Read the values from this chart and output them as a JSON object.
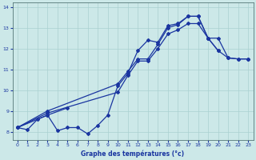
{
  "xlabel": "Graphe des températures (°c)",
  "bg_color": "#cce8e8",
  "grid_color": "#aad0d0",
  "line_color": "#1a35a0",
  "xlim": [
    -0.5,
    23.5
  ],
  "ylim": [
    7.6,
    14.2
  ],
  "xticks": [
    0,
    1,
    2,
    3,
    4,
    5,
    6,
    7,
    8,
    9,
    10,
    11,
    12,
    13,
    14,
    15,
    16,
    17,
    18,
    19,
    20,
    21,
    22,
    23
  ],
  "yticks": [
    8,
    9,
    10,
    11,
    12,
    13,
    14
  ],
  "line1_x": [
    0,
    1,
    2,
    3,
    4,
    5,
    6,
    7,
    8,
    9,
    10,
    11,
    12,
    13,
    14,
    15,
    16,
    17,
    18,
    19,
    20
  ],
  "line1_y": [
    8.2,
    8.1,
    8.6,
    8.8,
    8.05,
    8.2,
    8.2,
    7.9,
    8.3,
    8.8,
    10.2,
    10.8,
    11.9,
    12.4,
    12.3,
    13.1,
    13.2,
    13.55,
    13.55,
    12.5,
    11.9
  ],
  "line2_x": [
    0,
    3,
    10,
    11,
    12,
    13,
    14,
    15,
    16,
    17,
    18,
    19,
    20,
    21,
    22,
    23
  ],
  "line2_y": [
    8.2,
    9.0,
    10.3,
    10.9,
    11.5,
    11.5,
    12.2,
    13.0,
    13.15,
    13.55,
    13.55,
    12.5,
    11.9,
    11.55,
    11.5,
    11.5
  ],
  "line3_x": [
    0,
    3,
    10,
    11,
    12,
    13,
    14,
    15,
    16,
    17,
    18,
    19,
    20,
    21,
    22,
    23
  ],
  "line3_y": [
    8.2,
    8.9,
    9.9,
    10.7,
    11.4,
    11.4,
    12.0,
    12.7,
    12.9,
    13.2,
    13.2,
    12.5,
    12.5,
    11.55,
    11.5,
    11.5
  ],
  "line4_x": [
    0,
    3,
    5
  ],
  "line4_y": [
    8.2,
    8.8,
    9.15
  ]
}
